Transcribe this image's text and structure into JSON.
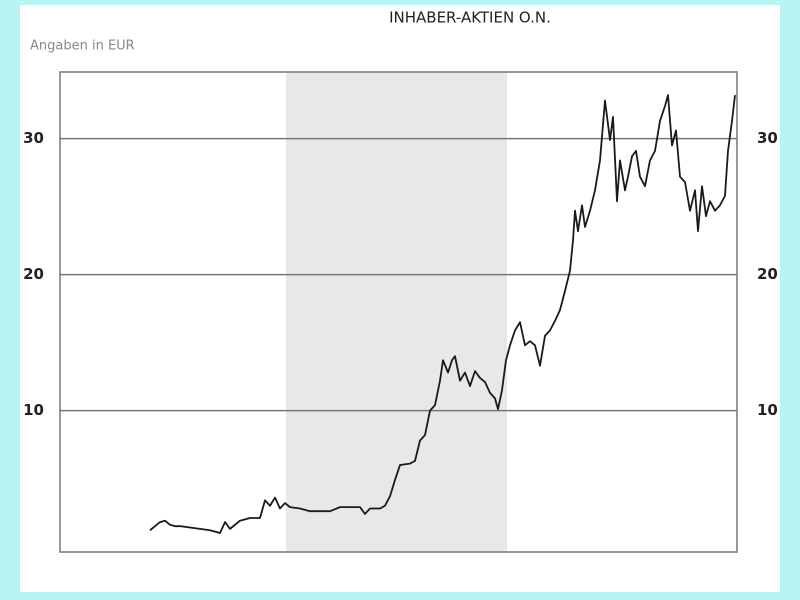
{
  "chart_data": {
    "type": "line",
    "title": "INHABER-AKTIEN O.N.",
    "subtitle": "Angaben in EUR",
    "x": [
      90,
      95,
      100,
      105,
      110,
      115,
      120,
      130,
      140,
      150,
      160,
      165,
      170,
      180,
      190,
      200,
      205,
      210,
      215,
      220,
      225,
      230,
      240,
      250,
      260,
      270,
      280,
      290,
      300,
      305,
      310,
      320,
      325,
      330,
      335,
      340,
      350,
      355,
      360,
      365,
      370,
      375,
      380,
      383,
      388,
      392,
      395,
      400,
      405,
      410,
      415,
      420,
      425,
      430,
      435,
      438,
      442,
      446,
      450,
      455,
      460,
      465,
      470,
      475,
      480,
      485,
      490,
      495,
      500,
      505,
      510,
      513,
      515,
      518,
      522,
      525,
      530,
      535,
      540,
      545,
      550,
      553,
      557,
      560,
      565,
      568,
      572,
      576,
      580,
      585,
      590,
      595,
      600,
      605,
      608,
      612,
      616,
      620,
      625,
      630,
      635,
      638,
      642,
      646,
      650,
      655,
      660,
      665,
      668,
      672,
      675
    ],
    "series": [
      {
        "color": "#1a1a1a",
        "values": [
          1.2,
          1.5,
          1.8,
          1.9,
          1.6,
          1.5,
          1.5,
          1.4,
          1.3,
          1.2,
          1.0,
          1.8,
          1.3,
          1.9,
          2.1,
          2.1,
          3.4,
          3.0,
          3.6,
          2.8,
          3.2,
          2.9,
          2.8,
          2.6,
          2.6,
          2.6,
          2.9,
          2.9,
          2.9,
          2.4,
          2.8,
          2.8,
          3.0,
          3.7,
          4.9,
          6.0,
          6.1,
          6.3,
          7.8,
          8.2,
          10.0,
          10.4,
          12.2,
          13.7,
          12.8,
          13.7,
          14.0,
          12.2,
          12.8,
          11.8,
          12.9,
          12.4,
          12.1,
          11.3,
          10.9,
          10.1,
          11.5,
          13.7,
          14.8,
          15.9,
          16.5,
          14.8,
          15.1,
          14.8,
          13.3,
          15.5,
          15.9,
          16.6,
          17.4,
          18.8,
          20.3,
          22.5,
          24.7,
          23.2,
          25.1,
          23.5,
          24.7,
          26.2,
          28.4,
          32.8,
          29.9,
          31.6,
          25.4,
          28.4,
          26.2,
          27.2,
          28.7,
          29.1,
          27.2,
          26.5,
          28.4,
          29.1,
          31.3,
          32.4,
          33.2,
          29.5,
          30.6,
          27.2,
          26.8,
          24.7,
          26.2,
          23.2,
          26.5,
          24.3,
          25.4,
          24.7,
          25.1,
          25.8,
          29.1,
          31.3,
          33.2
        ]
      }
    ],
    "xlim": [
      0,
      677
    ],
    "shaded_x": [
      226,
      447
    ],
    "shade_color": "#e6e8ea",
    "ylim": [
      -0.4,
      34.9
    ],
    "yticks": [
      10,
      20,
      30
    ],
    "grid": true
  }
}
